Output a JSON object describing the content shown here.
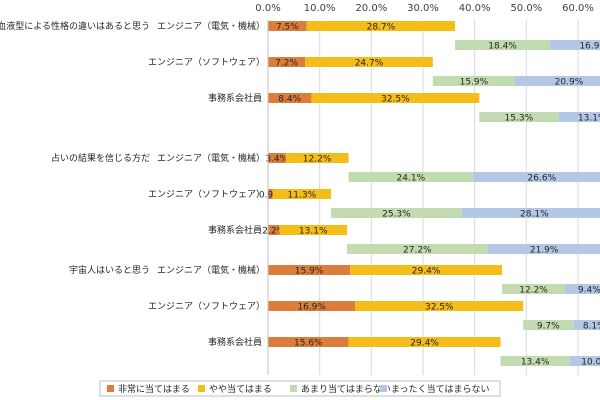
{
  "chart_data": {
    "type": "bar",
    "orientation": "horizontal",
    "stacked": true,
    "xlim": [
      0,
      60
    ],
    "x_ticks": [
      "0.0%",
      "10.0%",
      "20.0%",
      "30.0%",
      "40.0%",
      "50.0%",
      "60.0%"
    ],
    "axis_position": "top",
    "grid": true,
    "legend_position": "bottom",
    "legend": [
      {
        "name": "非常に当てはまる",
        "color": "#dd7d3c"
      },
      {
        "name": "やや当てはまる",
        "color": "#f5bd18"
      },
      {
        "name": "あまり当てはまらない",
        "color": "#c3dbb0"
      },
      {
        "name": "まったく当てはまらない",
        "color": "#b4c7e7"
      }
    ],
    "groups": [
      {
        "title": "血液型による性格の違いはあると思う",
        "rows": [
          {
            "category": "エンジニア（電気・機械）",
            "top": [
              7.5,
              28.7
            ],
            "bottom": [
              18.4,
              16.9
            ]
          },
          {
            "category": "エンジニア（ソフトウェア）",
            "top": [
              7.2,
              24.7
            ],
            "bottom": [
              15.9,
              20.9
            ]
          },
          {
            "category": "事務系会社員",
            "top": [
              8.4,
              32.5
            ],
            "bottom": [
              15.3,
              13.1
            ]
          }
        ]
      },
      {
        "title": "占いの結果を信じる方だ",
        "rows": [
          {
            "category": "エンジニア（電気・機械）",
            "top": [
              3.4,
              12.2
            ],
            "bottom": [
              24.1,
              26.6
            ]
          },
          {
            "category": "エンジニア（ソフトウェア）",
            "top": [
              0.9,
              11.3
            ],
            "bottom": [
              25.3,
              28.1
            ]
          },
          {
            "category": "事務系会社員",
            "top": [
              2.2,
              13.1
            ],
            "bottom": [
              27.2,
              21.9
            ]
          }
        ]
      },
      {
        "title": "宇宙人はいると思う",
        "rows": [
          {
            "category": "エンジニア（電気・機械）",
            "top": [
              15.9,
              29.4
            ],
            "bottom": [
              12.2,
              9.4
            ]
          },
          {
            "category": "エンジニア（ソフトウェア）",
            "top": [
              16.9,
              32.5
            ],
            "bottom": [
              9.7,
              8.1
            ]
          },
          {
            "category": "事務系会社員",
            "top": [
              15.6,
              29.4
            ],
            "bottom": [
              13.4,
              10.0
            ]
          }
        ]
      }
    ]
  }
}
